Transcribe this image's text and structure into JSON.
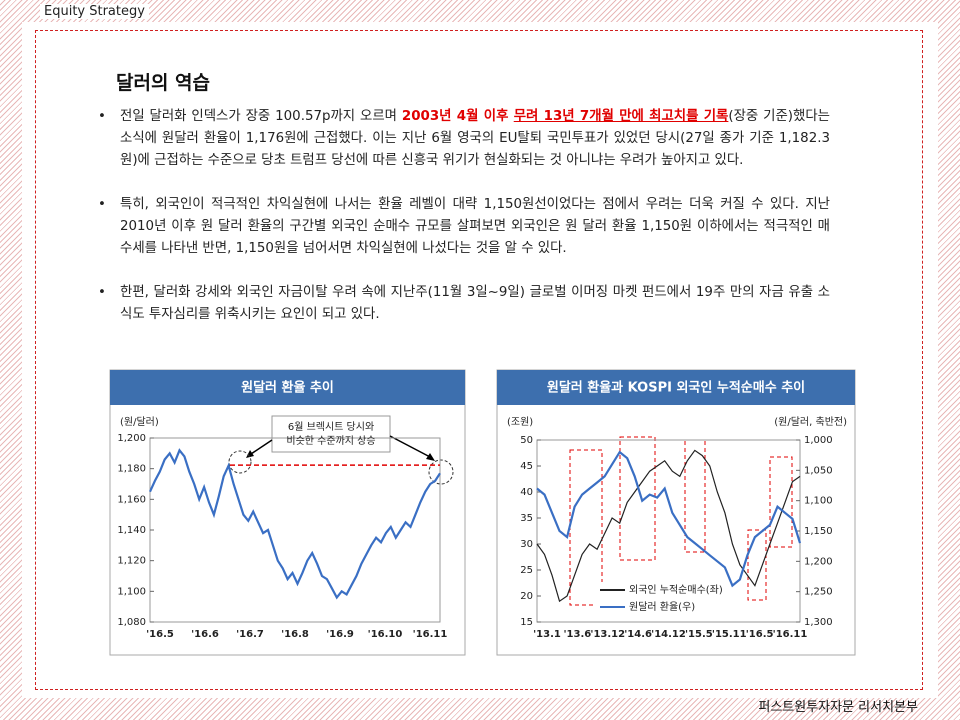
{
  "header": "Equity Strategy",
  "title": "달러의 역습",
  "bullets": [
    [
      {
        "text": "전일 달러화 인덱스가 장중 100.57p까지 오르며 "
      },
      {
        "text": "2003년 4월 이후 ",
        "style": "highlight"
      },
      {
        "text": "무려 13년 7개월 만에 최고치를 기록",
        "style": "highlight-underline"
      },
      {
        "text": "(장중 기준)했다는 소식에 원달러 환율이 1,176원에 근접했다. 이는 지난 6월 영국의 EU탈퇴 국민투표가 있었던 당시(27일 종가 기준 1,182.3원)에 근접하는 수준으로 당초 트럼프 당선에 따른 신흥국 위기가 현실화되는 것 아니냐는 우려가 높아지고 있다."
      }
    ],
    [
      {
        "text": "특히, 외국인이 적극적인 차익실현에 나서는 환율 레벨이 대략 1,150원선이었다는 점에서 우려는 더욱 커질 수 있다. 지난 2010년 이후 원 달러 환율의 구간별 외국인 순매수 규모를 살펴보면 외국인은 원 달러 환율 1,150원 이하에서는 적극적인 매수세를 나타낸 반면, 1,150원을 넘어서면 차익실현에 나섰다는 것을 알 수 있다."
      }
    ],
    [
      {
        "text": "한편, 달러화 강세와 외국인 자금이탈 우려 속에 지난주(11월 3일~9일) 글로벌 이머징 마켓 펀드에서 19주 만의 자금 유출 소식도 투자심리를 위축시키는 요인이 되고 있다."
      }
    ]
  ],
  "charts": [
    {
      "type": "line",
      "title": "원달러 환율 추이",
      "y_label": "(원/달러)",
      "annotation": [
        "6월 브렉시트 당시와",
        "비슷한 수준까지 상승"
      ],
      "reference_line": 1182.3,
      "reference_color": "#e00000",
      "categories": [
        "'16.5",
        "'16.6",
        "'16.7",
        "'16.8",
        "'16.9",
        "'16.10",
        "'16.11"
      ],
      "ylim": [
        1080,
        1200
      ],
      "yticks": [
        {
          "value": 1080,
          "label": "1,080"
        },
        {
          "value": 1100,
          "label": "1,100"
        },
        {
          "value": 1120,
          "label": "1,120"
        },
        {
          "value": 1140,
          "label": "1,140"
        },
        {
          "value": 1160,
          "label": "1,160"
        },
        {
          "value": 1180,
          "label": "1,180"
        },
        {
          "value": 1200,
          "label": "1,200"
        }
      ],
      "series": [
        {
          "color": "#3a6fc4",
          "values": [
            1165,
            1172,
            1178,
            1186,
            1190,
            1184,
            1192,
            1188,
            1178,
            1170,
            1160,
            1168,
            1158,
            1150,
            1162,
            1175,
            1182,
            1170,
            1160,
            1150,
            1146,
            1152,
            1145,
            1138,
            1140,
            1130,
            1120,
            1115,
            1108,
            1112,
            1105,
            1112,
            1120,
            1125,
            1118,
            1110,
            1108,
            1102,
            1096,
            1100,
            1098,
            1104,
            1110,
            1118,
            1124,
            1130,
            1135,
            1132,
            1138,
            1142,
            1135,
            1140,
            1145,
            1142,
            1150,
            1158,
            1165,
            1170,
            1172,
            1177
          ]
        }
      ]
    },
    {
      "type": "line",
      "title": "원달러 환율과 KOSPI 외국인 누적순매수 추이",
      "y_label": "(조원)",
      "y2_label": "(원/달러, 축반전)",
      "y2_inverted": true,
      "categories": [
        "'13.1",
        "'13.6",
        "'13.12",
        "'14.6",
        "'14.12",
        "'15.5",
        "'15.11",
        "'16.5",
        "'16.11"
      ],
      "ylim": [
        15,
        50
      ],
      "yticks": [
        15,
        20,
        25,
        30,
        35,
        40,
        45,
        50
      ],
      "y2lim": [
        1000,
        1300
      ],
      "y2ticks": [
        {
          "value": 1000,
          "label": "1,000"
        },
        {
          "value": 1050,
          "label": "1,050"
        },
        {
          "value": 1100,
          "label": "1,100"
        },
        {
          "value": 1150,
          "label": "1,150"
        },
        {
          "value": 1200,
          "label": "1,200"
        },
        {
          "value": 1250,
          "label": "1,250"
        },
        {
          "value": 1300,
          "label": "1,300"
        }
      ],
      "series": [
        {
          "name": "외국인 누적순매수(좌)",
          "color": "#222222",
          "values": [
            30,
            28,
            24,
            19,
            20,
            24,
            28,
            30,
            29,
            32,
            35,
            34,
            38,
            40,
            42,
            44,
            45,
            46,
            44,
            43,
            46,
            48,
            47,
            45,
            40,
            36,
            30,
            26,
            24,
            22,
            26,
            30,
            34,
            38,
            42,
            43
          ]
        },
        {
          "name": "원달러 환율(우)",
          "color": "#3a6fc4",
          "axis": "y2",
          "values": [
            1080,
            1090,
            1120,
            1150,
            1160,
            1110,
            1090,
            1080,
            1070,
            1060,
            1040,
            1020,
            1030,
            1060,
            1100,
            1090,
            1095,
            1080,
            1120,
            1140,
            1160,
            1170,
            1180,
            1190,
            1200,
            1210,
            1240,
            1230,
            1190,
            1160,
            1150,
            1140,
            1110,
            1120,
            1130,
            1170
          ]
        }
      ]
    }
  ],
  "footer": "퍼스트원투자자문 리서치본부"
}
